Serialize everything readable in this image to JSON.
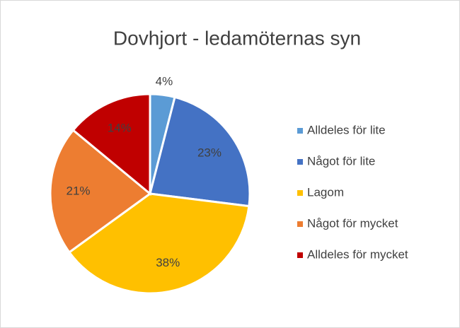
{
  "chart_data": {
    "type": "pie",
    "title": "Dovhjort - ledamöternas syn",
    "categories": [
      "Alldeles för lite",
      "Något för lite",
      "Lagom",
      "Något för mycket",
      "Alldeles för mycket"
    ],
    "values": [
      4,
      23,
      38,
      21,
      14
    ],
    "value_labels": [
      "4%",
      "23%",
      "38%",
      "21%",
      "14%"
    ],
    "colors": [
      "#5b9bd5",
      "#4472c4",
      "#ffc000",
      "#ed7d31",
      "#c00000"
    ],
    "legend": "right"
  }
}
